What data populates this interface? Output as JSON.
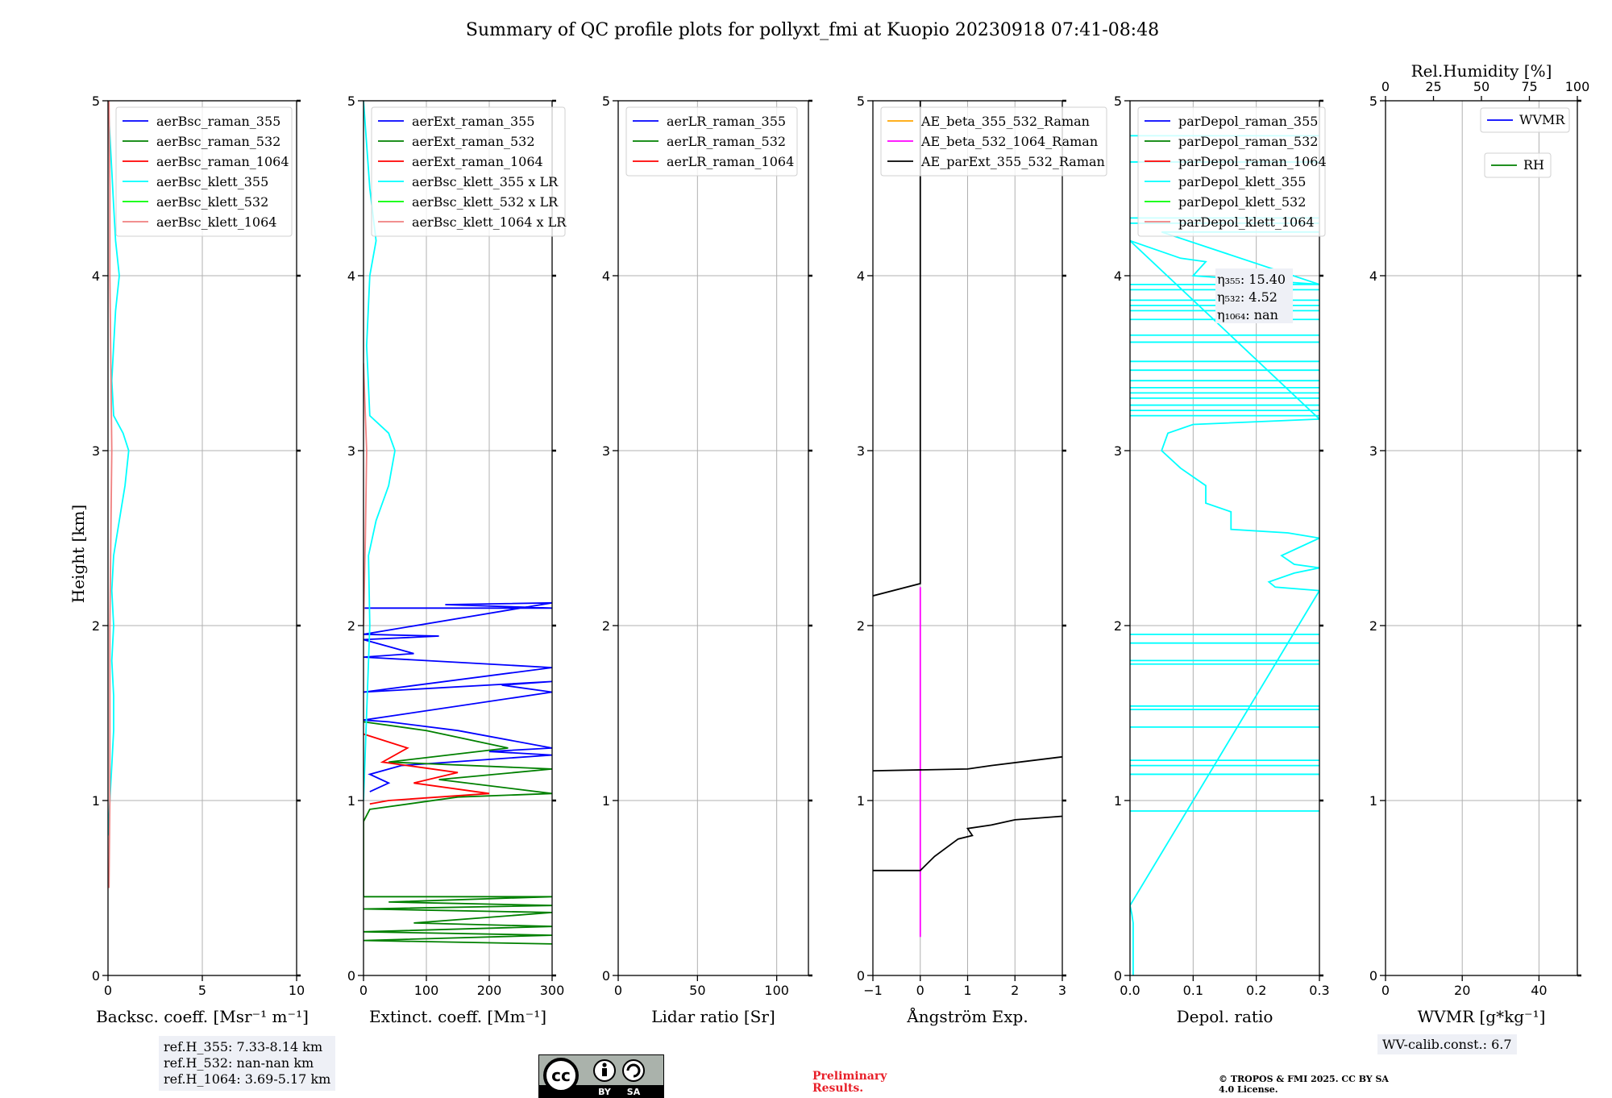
{
  "title": "Summary of QC profile plots for pollyxt_fmi at Kuopio 20230918 07:41-08:48",
  "ylabel": "Height [km]",
  "chart_data": [
    {
      "type": "line",
      "xlabel": "Backsc. coeff. [Msr⁻¹ m⁻¹]",
      "xlim": [
        0,
        10
      ],
      "ylim": [
        0,
        5
      ],
      "xticks": [
        "0",
        "5",
        "10"
      ],
      "yticks": [
        "0",
        "1",
        "2",
        "3",
        "4",
        "5"
      ],
      "legend": [
        "aerBsc_raman_355",
        "aerBsc_raman_532",
        "aerBsc_raman_1064",
        "aerBsc_klett_355",
        "aerBsc_klett_532",
        "aerBsc_klett_1064"
      ],
      "legend_colors": [
        "#0000ff",
        "#008000",
        "#ff0000",
        "#00ffff",
        "#00ff00",
        "#f08080"
      ],
      "series": [
        {
          "name": "aerBsc_klett_355",
          "color": "#00ffff",
          "points": [
            [
              0.0,
              0.8
            ],
            [
              0.1,
              1.0
            ],
            [
              0.2,
              1.2
            ],
            [
              0.3,
              1.4
            ],
            [
              0.3,
              1.6
            ],
            [
              0.2,
              1.8
            ],
            [
              0.3,
              2.0
            ],
            [
              0.2,
              2.2
            ],
            [
              0.3,
              2.4
            ],
            [
              0.6,
              2.6
            ],
            [
              0.9,
              2.8
            ],
            [
              1.1,
              3.0
            ],
            [
              0.8,
              3.1
            ],
            [
              0.3,
              3.2
            ],
            [
              0.2,
              3.4
            ],
            [
              0.3,
              3.6
            ],
            [
              0.4,
              3.8
            ],
            [
              0.6,
              4.0
            ],
            [
              0.4,
              4.2
            ],
            [
              0.3,
              4.4
            ],
            [
              0.2,
              4.6
            ],
            [
              0.1,
              4.8
            ],
            [
              0.0,
              5.0
            ]
          ]
        },
        {
          "name": "aerBsc_klett_1064",
          "color": "#f08080",
          "points": [
            [
              0.05,
              0.5
            ],
            [
              0.1,
              1.0
            ],
            [
              0.1,
              1.5
            ],
            [
              0.1,
              2.0
            ],
            [
              0.15,
              2.5
            ],
            [
              0.2,
              3.0
            ],
            [
              0.15,
              3.5
            ],
            [
              0.1,
              4.0
            ],
            [
              0.1,
              4.5
            ],
            [
              0.05,
              5.0
            ]
          ]
        }
      ]
    },
    {
      "type": "line",
      "xlabel": "Extinct. coeff. [Mm⁻¹]",
      "xlim": [
        0,
        300
      ],
      "ylim": [
        0,
        5
      ],
      "xticks": [
        "0",
        "100",
        "200",
        "300"
      ],
      "yticks": [
        "0",
        "1",
        "2",
        "3",
        "4",
        "5"
      ],
      "legend": [
        "aerExt_raman_355",
        "aerExt_raman_532",
        "aerExt_raman_1064",
        "aerBsc_klett_355 x LR",
        "aerBsc_klett_532 x LR",
        "aerBsc_klett_1064 x LR"
      ],
      "legend_colors": [
        "#0000ff",
        "#008000",
        "#ff0000",
        "#00ffff",
        "#00ff00",
        "#f08080"
      ],
      "series": [
        {
          "name": "aerExt_raman_355",
          "color": "#0000ff",
          "points": [
            [
              0,
              2.1
            ],
            [
              300,
              2.1
            ],
            [
              130,
              2.12
            ],
            [
              300,
              2.13
            ],
            [
              0,
              1.95
            ],
            [
              120,
              1.94
            ],
            [
              0,
              1.92
            ],
            [
              80,
              1.84
            ],
            [
              0,
              1.82
            ],
            [
              300,
              1.76
            ],
            [
              0,
              1.62
            ],
            [
              300,
              1.68
            ],
            [
              220,
              1.66
            ],
            [
              300,
              1.62
            ],
            [
              0,
              1.46
            ],
            [
              40,
              1.45
            ],
            [
              150,
              1.4
            ],
            [
              300,
              1.3
            ],
            [
              200,
              1.28
            ],
            [
              300,
              1.26
            ],
            [
              60,
              1.2
            ],
            [
              10,
              1.15
            ],
            [
              40,
              1.1
            ],
            [
              10,
              1.05
            ]
          ]
        },
        {
          "name": "aerExt_raman_532",
          "color": "#008000",
          "points": [
            [
              0,
              1.45
            ],
            [
              100,
              1.4
            ],
            [
              230,
              1.3
            ],
            [
              40,
              1.22
            ],
            [
              300,
              1.18
            ],
            [
              120,
              1.12
            ],
            [
              300,
              1.04
            ],
            [
              150,
              1.02
            ],
            [
              10,
              0.95
            ],
            [
              0,
              0.88
            ],
            [
              0,
              0.45
            ],
            [
              300,
              0.45
            ],
            [
              40,
              0.42
            ],
            [
              300,
              0.4
            ],
            [
              0,
              0.38
            ],
            [
              300,
              0.36
            ],
            [
              80,
              0.3
            ],
            [
              300,
              0.28
            ],
            [
              0,
              0.25
            ],
            [
              300,
              0.23
            ],
            [
              0,
              0.2
            ],
            [
              300,
              0.18
            ]
          ]
        },
        {
          "name": "aerExt_raman_1064",
          "color": "#ff0000",
          "points": [
            [
              0,
              1.38
            ],
            [
              70,
              1.3
            ],
            [
              30,
              1.22
            ],
            [
              150,
              1.16
            ],
            [
              80,
              1.1
            ],
            [
              200,
              1.04
            ],
            [
              40,
              1.0
            ],
            [
              10,
              0.98
            ]
          ]
        },
        {
          "name": "aerBsc_klett_355 x LR",
          "color": "#00ffff",
          "points": [
            [
              0,
              1.0
            ],
            [
              5,
              1.5
            ],
            [
              10,
              2.0
            ],
            [
              8,
              2.4
            ],
            [
              20,
              2.6
            ],
            [
              40,
              2.8
            ],
            [
              50,
              3.0
            ],
            [
              40,
              3.1
            ],
            [
              10,
              3.2
            ],
            [
              5,
              3.6
            ],
            [
              10,
              4.0
            ],
            [
              20,
              4.2
            ],
            [
              10,
              4.5
            ],
            [
              0,
              5.0
            ]
          ]
        },
        {
          "name": "aerBsc_klett_1064 x LR",
          "color": "#f08080",
          "points": [
            [
              0,
              2.0
            ],
            [
              3,
              2.5
            ],
            [
              5,
              3.0
            ],
            [
              3,
              3.2
            ],
            [
              0,
              3.5
            ]
          ]
        }
      ]
    },
    {
      "type": "line",
      "xlabel": "Lidar ratio [Sr]",
      "xlim": [
        0,
        120
      ],
      "ylim": [
        0,
        5
      ],
      "xticks": [
        "0",
        "50",
        "100"
      ],
      "yticks": [
        "0",
        "1",
        "2",
        "3",
        "4",
        "5"
      ],
      "legend": [
        "aerLR_raman_355",
        "aerLR_raman_532",
        "aerLR_raman_1064"
      ],
      "legend_colors": [
        "#0000ff",
        "#008000",
        "#ff0000"
      ],
      "series": []
    },
    {
      "type": "line",
      "xlabel": "Ångström Exp.",
      "xlim": [
        -1,
        3
      ],
      "ylim": [
        0,
        5
      ],
      "xticks": [
        "−1",
        "0",
        "1",
        "2",
        "3"
      ],
      "yticks": [
        "0",
        "1",
        "2",
        "3",
        "4",
        "5"
      ],
      "legend": [
        "AE_beta_355_532_Raman",
        "AE_beta_532_1064_Raman",
        "AE_parExt_355_532_Raman"
      ],
      "legend_colors": [
        "#ffa500",
        "#ff00ff",
        "#000000"
      ],
      "series": [
        {
          "name": "AE_beta_532_1064_Raman",
          "color": "#ff00ff",
          "points": [
            [
              0,
              0.22
            ],
            [
              0,
              2.22
            ]
          ]
        },
        {
          "name": "AE_parExt_355_532_Raman",
          "color": "#000000",
          "points": [
            [
              -1,
              0.6
            ],
            [
              0,
              0.6
            ],
            [
              0.3,
              0.68
            ],
            [
              0.8,
              0.78
            ],
            [
              1.1,
              0.8
            ],
            [
              1.0,
              0.84
            ],
            [
              1.5,
              0.86
            ],
            [
              2.0,
              0.89
            ],
            [
              3,
              0.91
            ]
          ]
        },
        {
          "name": "AE_parExt_355_532_Raman",
          "color": "#000000",
          "points": [
            [
              -1,
              1.17
            ],
            [
              1.0,
              1.18
            ],
            [
              1.5,
              1.2
            ],
            [
              3,
              1.25
            ]
          ]
        },
        {
          "name": "AE_parExt_355_532_Raman",
          "color": "#000000",
          "points": [
            [
              -1,
              2.17
            ],
            [
              0,
              2.24
            ],
            [
              0,
              5.0
            ]
          ]
        }
      ]
    },
    {
      "type": "line",
      "xlabel": "Depol. ratio",
      "xlim": [
        0,
        0.3
      ],
      "ylim": [
        0,
        5
      ],
      "xticks": [
        "0.0",
        "0.1",
        "0.2",
        "0.3"
      ],
      "yticks": [
        "0",
        "1",
        "2",
        "3",
        "4",
        "5"
      ],
      "legend": [
        "parDepol_raman_355",
        "parDepol_raman_532",
        "parDepol_raman_1064",
        "parDepol_klett_355",
        "parDepol_klett_532",
        "parDepol_klett_1064"
      ],
      "legend_colors": [
        "#0000ff",
        "#008000",
        "#ff0000",
        "#00ffff",
        "#00ff00",
        "#f08080"
      ],
      "annotations": [
        "η₃₅₅: 15.40",
        "η₅₃₂: 4.52",
        "η₁₀₆₄: nan"
      ],
      "series": [
        {
          "name": "parDepol_klett_355",
          "color": "#00ffff",
          "points": [
            [
              0.005,
              0.0
            ],
            [
              0.005,
              0.3
            ],
            [
              0.003,
              0.35
            ],
            [
              0.0,
              0.4
            ],
            [
              0.3,
              2.2
            ],
            [
              0.23,
              2.22
            ],
            [
              0.22,
              2.25
            ],
            [
              0.26,
              2.3
            ],
            [
              0.3,
              2.33
            ],
            [
              0.26,
              2.35
            ],
            [
              0.24,
              2.4
            ],
            [
              0.3,
              2.5
            ],
            [
              0.25,
              2.53
            ],
            [
              0.16,
              2.55
            ],
            [
              0.16,
              2.65
            ],
            [
              0.12,
              2.7
            ],
            [
              0.12,
              2.8
            ],
            [
              0.08,
              2.9
            ],
            [
              0.05,
              3.0
            ],
            [
              0.06,
              3.1
            ],
            [
              0.1,
              3.15
            ],
            [
              0.3,
              3.18
            ],
            [
              0.0,
              4.2
            ],
            [
              0.08,
              4.1
            ],
            [
              0.12,
              4.08
            ],
            [
              0.1,
              4.0
            ],
            [
              0.3,
              3.95
            ],
            [
              0.05,
              4.25
            ],
            [
              0.3,
              4.25
            ]
          ]
        },
        {
          "name": "parDepol_klett_355",
          "color": "#00ffff",
          "hlines": [
            0.94,
            1.15,
            1.2,
            1.23,
            1.42,
            1.52,
            1.54,
            1.78,
            1.8,
            1.9,
            1.95,
            3.2,
            3.23,
            3.26,
            3.3,
            3.33,
            3.36,
            3.4,
            3.46,
            3.51,
            3.62,
            3.66,
            3.75,
            3.8,
            3.83,
            3.86,
            3.92,
            3.95,
            4.3,
            4.33,
            4.65,
            4.8
          ],
          "from": 0.0,
          "to": 0.3
        }
      ]
    },
    {
      "type": "line",
      "xlabel": "WVMR [g*kg⁻¹]",
      "top_xlabel": "Rel.Humidity [%]",
      "xlim": [
        0,
        50
      ],
      "ylim": [
        0,
        5
      ],
      "xticks": [
        "0",
        "20",
        "40"
      ],
      "top_xticks": [
        "0",
        "25",
        "50",
        "75",
        "100"
      ],
      "yticks": [
        "0",
        "1",
        "2",
        "3",
        "4",
        "5"
      ],
      "legend": [
        "WVMR",
        "RH"
      ],
      "legend_colors": [
        "#0000ff",
        "#008000"
      ],
      "series": []
    }
  ],
  "ref_heights": [
    "ref.H_355: 7.33-8.14 km",
    "ref.H_532: nan-nan km",
    "ref.H_1064: 3.69-5.17 km"
  ],
  "wv_calib": "WV-calib.const.: 6.7",
  "license_logo": {
    "text_cc": "cc",
    "by": "BY",
    "sa": "SA"
  },
  "preliminary": "Preliminary Results.",
  "copyright": "© TROPOS & FMI 2025. CC BY SA 4.0 License."
}
